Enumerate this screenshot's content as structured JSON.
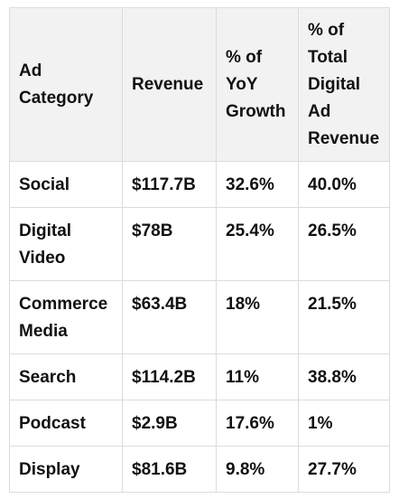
{
  "table": {
    "headers": [
      "Ad Category",
      "Revenue",
      "% of YoY Growth",
      "% of Total Digital Ad Revenue"
    ],
    "rows": [
      [
        "Social",
        "$117.7B",
        "32.6%",
        "40.0%"
      ],
      [
        "Digital Video",
        "$78B",
        "25.4%",
        "26.5%"
      ],
      [
        "Commerce Media",
        "$63.4B",
        "18%",
        "21.5%"
      ],
      [
        "Search",
        "$114.2B",
        "11%",
        "38.8%"
      ],
      [
        "Podcast",
        "$2.9B",
        "17.6%",
        "1%"
      ],
      [
        "Display",
        "$81.6B",
        "9.8%",
        "27.7%"
      ]
    ]
  }
}
